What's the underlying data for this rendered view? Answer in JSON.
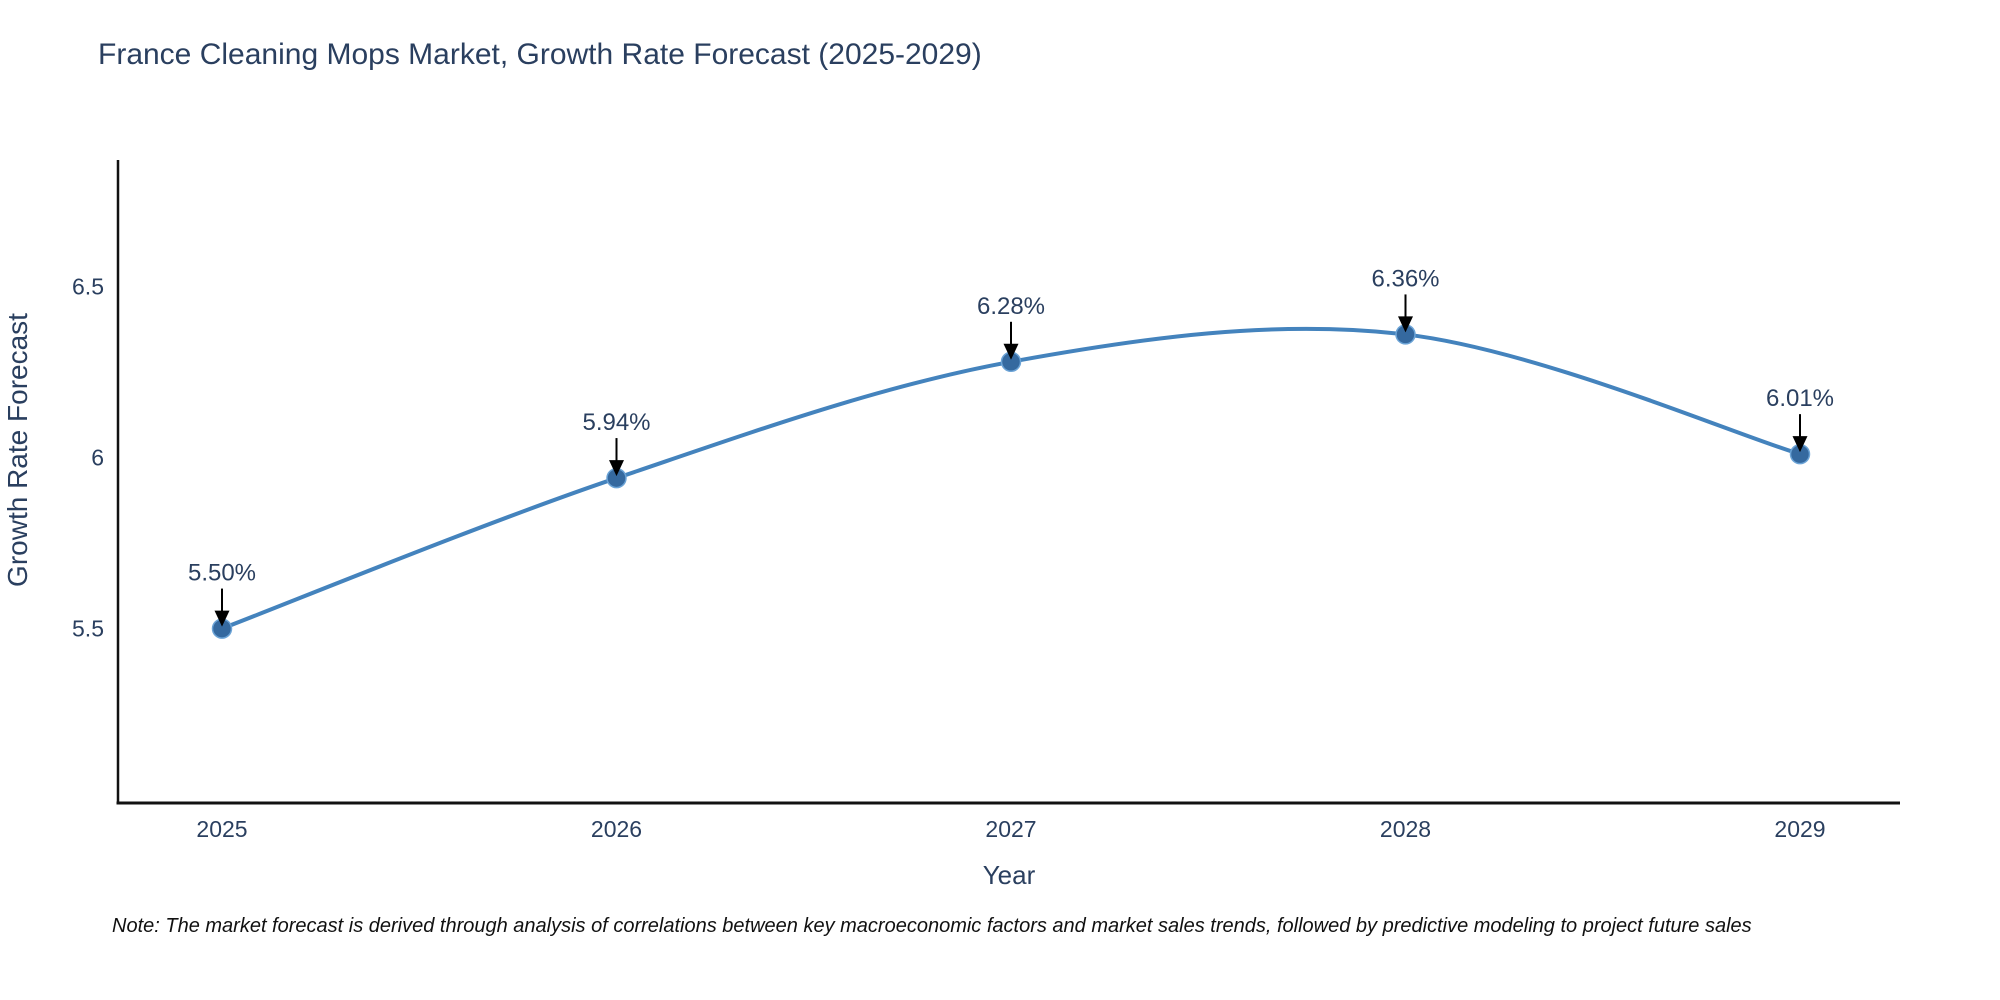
{
  "title": "France Cleaning Mops Market, Growth Rate Forecast (2025-2029)",
  "note": "Note: The market forecast is derived through analysis of correlations between key macroeconomic factors and market sales trends, followed by predictive modeling to project future sales",
  "chart_data": {
    "type": "line",
    "title": "France Cleaning Mops Market, Growth Rate Forecast (2025-2029)",
    "xlabel": "Year",
    "ylabel": "Growth Rate Forecast",
    "categories": [
      "2025",
      "2026",
      "2027",
      "2028",
      "2029"
    ],
    "series": [
      {
        "name": "Growth Rate Forecast",
        "values": [
          5.5,
          5.94,
          6.28,
          6.36,
          6.01
        ],
        "point_labels": [
          "5.50%",
          "5.94%",
          "6.28%",
          "6.36%",
          "6.01%"
        ]
      }
    ],
    "yticks": [
      5.5,
      6,
      6.5
    ],
    "ytick_labels": [
      "5.5",
      "6",
      "6.5"
    ],
    "ylim": [
      4.99,
      6.87
    ],
    "line_shape": "spline",
    "grid": false,
    "legend": "none",
    "annotations_style": "value labels with down arrows pointing at markers",
    "colors": {
      "line": "#4483bd",
      "marker_fill": "#35699f",
      "marker_edge": "#6ba3d6",
      "axis": "#111111",
      "text": "#2a3f5f",
      "arrow": "#000000",
      "background": "#ffffff"
    }
  }
}
